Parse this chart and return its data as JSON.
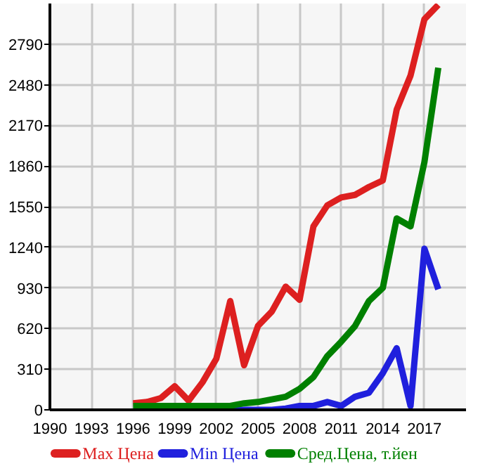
{
  "chart_data": {
    "type": "line",
    "x": [
      1996,
      1997,
      1998,
      1999,
      2000,
      2001,
      2002,
      2003,
      2004,
      2005,
      2006,
      2007,
      2008,
      2009,
      2010,
      2011,
      2012,
      2013,
      2014,
      2015,
      2016,
      2017,
      2018
    ],
    "series": [
      {
        "name": "Max Цена",
        "color": "#dd2020",
        "values": [
          50,
          60,
          90,
          180,
          70,
          210,
          390,
          830,
          340,
          640,
          750,
          940,
          840,
          1400,
          1560,
          1620,
          1640,
          1700,
          1750,
          2290,
          2550,
          2980,
          3090
        ]
      },
      {
        "name": "Min Цена",
        "color": "#2020dd",
        "values": [
          null,
          null,
          null,
          null,
          null,
          null,
          0,
          0,
          0,
          0,
          0,
          10,
          30,
          30,
          60,
          30,
          100,
          130,
          280,
          470,
          30,
          1230,
          920
        ]
      },
      {
        "name": "Сред.Цена, т.йен",
        "color": "#008000",
        "values": [
          30,
          30,
          30,
          30,
          30,
          30,
          30,
          30,
          50,
          60,
          80,
          100,
          160,
          250,
          410,
          520,
          640,
          830,
          930,
          1460,
          1400,
          1890,
          2610
        ]
      }
    ],
    "xlim": [
      1990,
      2020
    ],
    "xticks": [
      1990,
      1993,
      1996,
      1999,
      2002,
      2005,
      2008,
      2011,
      2014,
      2017
    ],
    "ylim": [
      0,
      3100
    ],
    "yticks": [
      0,
      310,
      620,
      930,
      1240,
      1550,
      1860,
      2170,
      2480,
      2790
    ],
    "grid": true,
    "legend": "bottom",
    "marker": "none",
    "line_style": "solid"
  }
}
